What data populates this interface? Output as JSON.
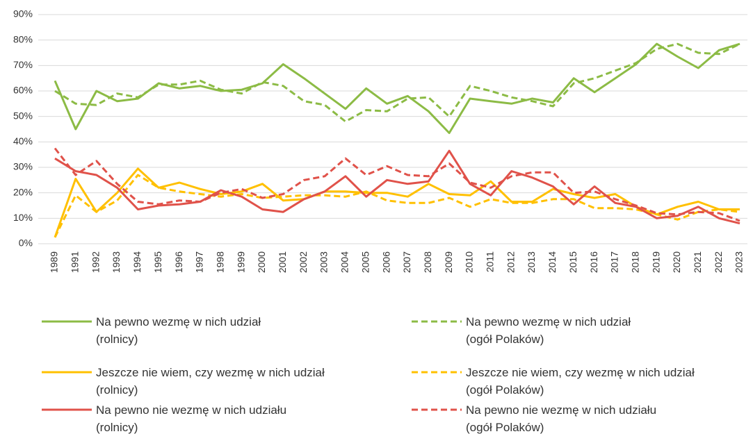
{
  "chart_data": {
    "type": "line",
    "categories": [
      "1989",
      "1991",
      "1992",
      "1993",
      "1994",
      "1995",
      "1996",
      "1997",
      "1998",
      "1999",
      "2000",
      "2001",
      "2002",
      "2003",
      "2004",
      "2005",
      "2006",
      "2007",
      "2008",
      "2009",
      "2010",
      "2011",
      "2012",
      "2013",
      "2014",
      "2015",
      "2016",
      "2017",
      "2018",
      "2019",
      "2020",
      "2021",
      "2022",
      "2023"
    ],
    "ylim": [
      0,
      90
    ],
    "yticks": [
      {
        "value": 0,
        "label": "0%"
      },
      {
        "value": 10,
        "label": "10%"
      },
      {
        "value": 20,
        "label": "20%"
      },
      {
        "value": 30,
        "label": "30%"
      },
      {
        "value": 40,
        "label": "40%"
      },
      {
        "value": 50,
        "label": "50%"
      },
      {
        "value": 60,
        "label": "60%"
      },
      {
        "value": 70,
        "label": "70%"
      },
      {
        "value": 80,
        "label": "80%"
      },
      {
        "value": 90,
        "label": "90%"
      }
    ],
    "grid": true,
    "series": [
      {
        "name": "Na pewno wezmę w nich udział\n(rolnicy)",
        "color": "#8cbb45",
        "linestyle": "solid",
        "values": [
          64,
          45,
          60,
          56,
          57,
          63,
          61,
          62,
          60,
          60.5,
          63,
          70.5,
          65,
          59,
          53,
          61,
          55,
          58,
          52,
          43.5,
          57,
          56,
          55,
          57,
          55.5,
          65,
          59.5,
          65,
          70.5,
          78.5,
          73.5,
          69,
          76,
          78.5
        ]
      },
      {
        "name": "Na pewno wezmę w nich udział\n(ogół Polaków)",
        "color": "#8cbb45",
        "linestyle": "dashed",
        "values": [
          60,
          55,
          54.5,
          59,
          57.5,
          62.5,
          62.5,
          64,
          60.5,
          59,
          63.5,
          62,
          56,
          54.5,
          48,
          52.5,
          52,
          57,
          57.5,
          50,
          62,
          60,
          57.5,
          56,
          54,
          63,
          65,
          68,
          71,
          76.5,
          78.5,
          75,
          74.5,
          78.5
        ]
      },
      {
        "name": "Jeszcze nie wiem, czy wezmę w nich udział\n(rolnicy)",
        "color": "#ffc000",
        "linestyle": "solid",
        "values": [
          2.5,
          25.5,
          12.5,
          20,
          29.5,
          22,
          24,
          21.5,
          19.5,
          20.5,
          23.5,
          17,
          17.5,
          20.5,
          20.5,
          20,
          20,
          18.5,
          23.5,
          19.5,
          19,
          24.5,
          16.5,
          16.5,
          21.5,
          19.5,
          18,
          19.5,
          14.5,
          11.5,
          14.5,
          16.5,
          13.5,
          13.5
        ]
      },
      {
        "name": "Jeszcze nie wiem, czy wezmę w nich udział\n(ogół Polaków)",
        "color": "#ffc000",
        "linestyle": "dashed",
        "values": [
          2.5,
          19,
          12.5,
          17,
          27,
          22,
          20.5,
          19.5,
          18.5,
          19.5,
          18,
          18.5,
          19,
          19,
          18.5,
          20.5,
          17,
          16,
          16,
          18,
          14.5,
          17.5,
          16,
          16,
          17.5,
          17.5,
          14,
          14,
          13.5,
          11.5,
          9.5,
          12.5,
          13.5,
          12.5
        ]
      },
      {
        "name": "Na pewno nie wezmę w nich udziału\n(rolnicy)",
        "color": "#e0524a",
        "linestyle": "solid",
        "values": [
          33.5,
          28.5,
          27,
          22,
          13.5,
          15,
          15.5,
          16.5,
          21,
          18.5,
          13.5,
          12.5,
          17.5,
          20.5,
          26.5,
          18.5,
          25,
          23.5,
          24.5,
          36.5,
          23.5,
          19,
          28.5,
          26,
          22.5,
          15.5,
          22.5,
          16,
          14.5,
          10,
          11,
          14.5,
          10,
          8
        ]
      },
      {
        "name": "Na pewno nie wezmę w nich udziału\n(ogół Polaków)",
        "color": "#e0524a",
        "linestyle": "dashed",
        "values": [
          37.5,
          27,
          32.5,
          23.5,
          16.5,
          15.5,
          17,
          16.5,
          20,
          21.5,
          18,
          19.5,
          25,
          26.5,
          33.5,
          27,
          30.5,
          27,
          26.5,
          31.5,
          24,
          22,
          26.5,
          28,
          28,
          20,
          20.5,
          17.5,
          15,
          12,
          11.5,
          12.5,
          12,
          9
        ]
      }
    ]
  }
}
